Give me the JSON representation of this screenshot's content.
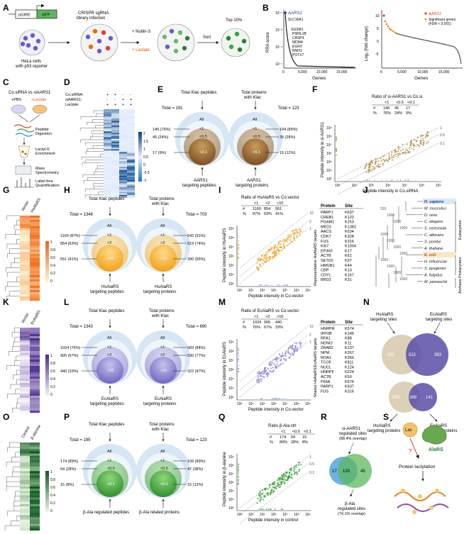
{
  "figure": {
    "panel_letters": [
      "A",
      "B",
      "C",
      "D",
      "E",
      "F",
      "G",
      "H",
      "I",
      "J",
      "K",
      "L",
      "M",
      "N",
      "O",
      "P",
      "Q",
      "R",
      "S"
    ]
  },
  "panelA": {
    "promoter": "p53RE",
    "reporter": "GFP",
    "cells_label": "HeLa cells",
    "cells_label2": "with p53 reporter",
    "library_label": "CRISPR sgRNA",
    "library_label2": "library infection",
    "treat1": "+ Nutlin-3",
    "treat2": "+ Lactate",
    "sort": "Sort",
    "top": "Top 10%"
  },
  "panelB": {
    "left_ylabel": "RRA score",
    "left_xlabel": "Genes",
    "left_highlight": "AARS1",
    "left_genes": [
      "SLC16A1",
      "SGSM1",
      "PIWIL1B",
      "CASP4",
      "MDM4",
      "EGR3",
      "RNH1",
      "POTX7"
    ],
    "right_ylabel": "Log₂ (fold change)",
    "right_xlabel": "Genes",
    "right_legend1": "AARS1",
    "right_legend2": "Significant genes",
    "right_legend3": "(FDR < 0.001)",
    "yticks_left": [
      "10⁻¹",
      "10⁻³",
      "10⁻⁵",
      "10⁻⁷"
    ],
    "yticks_right": [
      "10",
      "5",
      "0",
      "-5"
    ],
    "xticks": [
      "0",
      "5,000",
      "10,000",
      "15,000"
    ]
  },
  "panelC": {
    "title": "Co.siRNA vs siAARS1",
    "pbs": "+PBS",
    "lactate": "+Lactate",
    "step1": "Peptide",
    "step1b": "Digestion",
    "step2": "Lactyl-K",
    "step2b": "Enrichment",
    "step3": "Mass",
    "step3b": "Spectrometry",
    "step4": "Label-free",
    "step4b": "Quantification"
  },
  "panelD": {
    "rows": [
      "Co.siRNA:",
      "siAARS1:",
      "Lactate:"
    ],
    "signs": [
      [
        "+",
        "+",
        "-",
        "-"
      ],
      [
        "-",
        "-",
        "+",
        "+"
      ],
      [
        "+",
        "+",
        "+",
        "+"
      ]
    ],
    "scale": [
      "2",
      "1.5",
      "1",
      "0.5",
      "0",
      "-0.5",
      "-1"
    ]
  },
  "panelE": {
    "left_top": "Total Klac peptides",
    "right_top": "Total proteins",
    "right_top2": "with Klac",
    "left_total": "Total = 191",
    "right_total": "Total = 123",
    "levels": [
      "All",
      "<1",
      "<0.5",
      "<0.1"
    ],
    "left_counts": [
      "146 (76%)",
      "45 (24%)",
      "17 (9%)"
    ],
    "right_counts": [
      "104 (85%)",
      "35 (28%)",
      "15 (12%)"
    ],
    "left_bottom": "AARS1",
    "left_bottom2": "targeting peptides",
    "right_bottom": "AARS1",
    "right_bottom2": "targeting proteins"
  },
  "panelF": {
    "title": "Ratio of si-AARS1 vs Co.si",
    "header": [
      "<1",
      "<0.5",
      "<0.1"
    ],
    "counts": [
      "146",
      "45",
      "17"
    ],
    "pcts": [
      "76%",
      "24%",
      "9%"
    ],
    "row_labels": [
      "#",
      "%"
    ],
    "xlabel": "Peptide intensity in Co.siRNA",
    "ylabel": "Peptide intensity in si-AARS1",
    "line_labels": [
      "1",
      "0.5",
      "0.1"
    ]
  },
  "panelG": {
    "cols": [
      "Vector",
      "HsAlaRS"
    ],
    "scale": [
      "1",
      "0.8",
      "0.6",
      "0.4",
      "0.2",
      "0"
    ]
  },
  "panelH": {
    "left_top": "Total Klac peptides",
    "right_top": "Total proteins",
    "right_top2": "with Klac",
    "left_total": "Total = 1348",
    "right_total": "Total = 703",
    "levels": [
      "All",
      ">1",
      ">2",
      ">10"
    ],
    "left_counts": [
      "1169 (87%)",
      "854 (63%)",
      "551 (41%)"
    ],
    "right_counts": [
      "642 (91%)",
      "519 (74%)",
      "390 (55%)"
    ],
    "left_bottom": "HsAlaRS",
    "left_bottom2": "targeting peptides",
    "right_bottom": "HsAlaRS",
    "right_bottom2": "targeting proteins"
  },
  "panelI": {
    "title": "Ratio of HsAlaRS vs Co.vector",
    "header": [
      ">1",
      ">2",
      ">10"
    ],
    "counts": [
      "1169",
      "854",
      "551"
    ],
    "pcts": [
      "87%",
      "63%",
      "41%"
    ],
    "row_labels": [
      "#",
      "%"
    ],
    "xlabel": "Peptide intensity in Co.vector",
    "ylabel": "Peptide intensity in HsAlaRS",
    "line_labels": [
      "1",
      "2",
      "10"
    ],
    "table_side": "Representative HsAlaRS targets",
    "table_head": [
      "Protein",
      "Site"
    ],
    "table": [
      [
        "PARP1",
        "K637"
      ],
      [
        "CREB1",
        "K122"
      ],
      [
        "PGAM1",
        "K253"
      ],
      [
        "MED1",
        "K1382"
      ],
      [
        "AACS",
        "K634"
      ],
      [
        "CDK7",
        "K328"
      ],
      [
        "FUS",
        "K316"
      ],
      [
        "KI67",
        "K1004"
      ],
      [
        "EP300",
        "K17"
      ],
      [
        "ACTB",
        "K61"
      ],
      [
        "SETD2",
        "K37"
      ],
      [
        "HMGB1",
        "K44"
      ],
      [
        "CBP",
        "K13"
      ],
      [
        "CDYL",
        "K167"
      ],
      [
        "BRD2",
        "K31"
      ]
    ]
  },
  "panelJ": {
    "species": [
      "H. sapiens",
      "M. musculus",
      "D. rerio",
      "C. elegans",
      "S. cerevisiae",
      "C. albicans",
      "S. pombe",
      "A. thaliana",
      "E. coli",
      "H. influenzae",
      "S. pyogenes",
      "A. fulgidus",
      "M. jannaschii"
    ],
    "groups": [
      "Eukaryotes",
      "Prokaryotes",
      "Archaea"
    ],
    "bootstrap": [
      "520",
      "1000",
      "1000",
      "1000",
      "1000",
      "1000",
      "1000",
      "1000",
      "1000",
      "1000",
      "1000",
      "1000"
    ]
  },
  "panelK": {
    "cols": [
      "Vector",
      "EcAlaRS"
    ],
    "scale": [
      "1",
      "0.8",
      "0.6",
      "0.4",
      "0.2",
      "0"
    ]
  },
  "panelL": {
    "left_top": "Total Klac peptides",
    "right_top": "Total proteins",
    "right_top2": "with Klac",
    "left_total": "Total = 1343",
    "right_total": "Total = 690",
    "levels": [
      "All",
      ">1",
      ">2",
      ">10"
    ],
    "left_counts": [
      "1024 (76%)",
      "905 (67%)",
      "440 (33%)"
    ],
    "right_counts": [
      "583 (84%)",
      "530 (77%)",
      "322 (47%)"
    ],
    "left_bottom": "EcAlaRS",
    "left_bottom2": "targeting peptides",
    "right_bottom": "EcAlaRS",
    "right_bottom2": "targeting proteins"
  },
  "panelM": {
    "title": "Ratio of EcAlaRS vs Co.vector",
    "header": [
      ">1",
      ">2",
      ">10"
    ],
    "counts": [
      "1024",
      "905",
      "440"
    ],
    "pcts": [
      "76%",
      "67%",
      "33%"
    ],
    "row_labels": [
      "#",
      "%"
    ],
    "xlabel": "Peptide intensity in Co.vector",
    "ylabel": "Peptide intensity in EcAlaRS",
    "line_labels": [
      "1",
      "2",
      "10"
    ],
    "table_side": "Shared HsAlaRS/EcAlaRS targets",
    "table_head": [
      "Protein",
      "Site"
    ],
    "table": [
      [
        "HNRPR",
        "K574"
      ],
      [
        "IPP2B",
        "K145"
      ],
      [
        "RFA1",
        "K88"
      ],
      [
        "NONO",
        "K11"
      ],
      [
        "ZRAB2",
        "K137"
      ],
      [
        "NPM",
        "K267"
      ],
      [
        "ROA1",
        "K350"
      ],
      [
        "TCOF",
        "K811"
      ],
      [
        "NUCL",
        "K124"
      ],
      [
        "HNRPF",
        "K224"
      ],
      [
        "ACTB",
        "K50"
      ],
      [
        "P66A",
        "K576"
      ],
      [
        "PARP1",
        "K637"
      ],
      [
        "FUS",
        "K316"
      ]
    ]
  },
  "panelN": {
    "top_left": "HsAlaRS",
    "top_left2": "targeting sites",
    "top_right": "EcAlaRS",
    "top_right2": "targeting sites",
    "top_vals": [
      "332",
      "522",
      "383"
    ],
    "bottom_vals": [
      "253",
      "389",
      "141"
    ],
    "bottom_left": "HsAlaRS",
    "bottom_left2": "targeting proteins",
    "bottom_right": "EcAlaRS",
    "bottom_right2": "targeting proteins"
  },
  "panelO": {
    "cols": [
      "Control",
      "β-alanine"
    ],
    "scale": [
      "1",
      "0.8",
      "0.6",
      "0.4",
      "0.2",
      "0"
    ]
  },
  "panelP": {
    "left_top": "Total Klac peptides",
    "right_top": "Total proteins",
    "right_top2": "with Klac",
    "left_total": "Total = 195",
    "right_total": "Total = 123",
    "levels": [
      "All",
      "<1",
      "<0.5",
      "<0.1"
    ],
    "left_counts": [
      "174 (89%)",
      "54 (28%)",
      "15 (8%)"
    ],
    "right_counts": [
      "109 (89%)",
      "47 (38%)",
      "15 (12%)"
    ],
    "left_bottom": "β-Ala regulated peptides",
    "right_bottom": "β-Ala related proteins"
  },
  "panelQ": {
    "title": "Ratio β-Ala:ctrl",
    "header": [
      "<1",
      "<0.5",
      "<0.1"
    ],
    "counts": [
      "174",
      "54",
      "15"
    ],
    "pcts": [
      "89%",
      "28%",
      "8%"
    ],
    "row_labels": [
      "#",
      "%"
    ],
    "xlabel": "Peptide intensity in control",
    "ylabel": "Peptide intensity in β-alanine",
    "line_labels": [
      "1",
      "0.5",
      "0.1"
    ]
  },
  "panelR": {
    "top": "si-AARS1",
    "top2": "regulated sites",
    "top3": "(88.4% overlap)",
    "vals": [
      "17",
      "129",
      "45"
    ],
    "bottom": "β-Ala",
    "bottom2": "regulated sites",
    "bottom3": "(74.1% overlap)"
  },
  "panelS": {
    "lac": "Lac",
    "enzyme": "AlaRS",
    "q": "?",
    "result": "Protein lactylation"
  },
  "axis_ticks": [
    "10³",
    "10⁴",
    "10⁵",
    "10⁶",
    "10⁷",
    "10⁸",
    "10⁹"
  ]
}
